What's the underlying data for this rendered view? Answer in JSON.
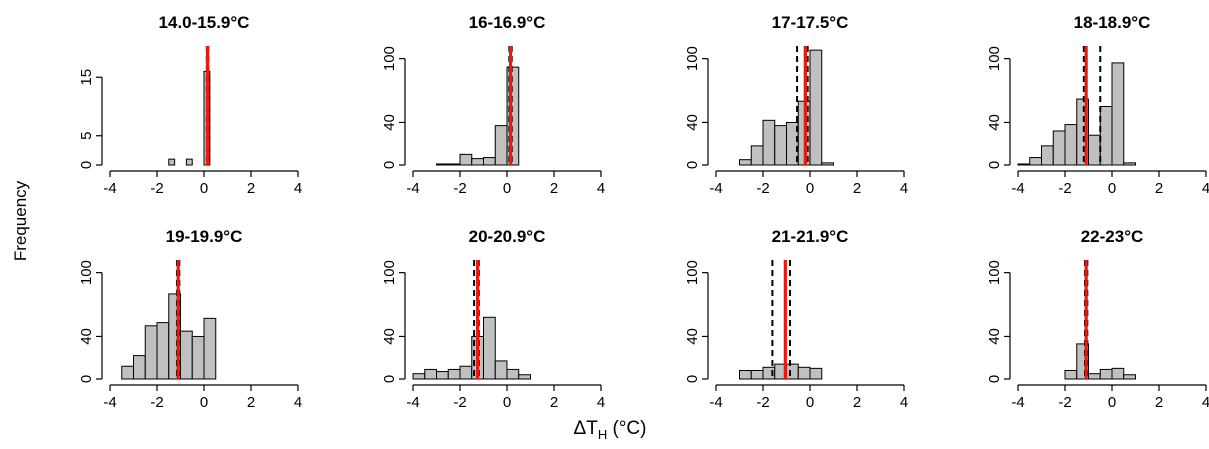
{
  "chart_data": {
    "type": "bar",
    "ylabel": "Frequency",
    "xlabel": "ΔT",
    "xlabel_subscript": "H",
    "xlabel_unit": "(°C)",
    "xticks": [
      -4,
      -2,
      0,
      2,
      4
    ],
    "xlim": [
      -4,
      4
    ],
    "bin_width": 0.5,
    "colors": {
      "bar": "#c0c0c0",
      "mean": "#e8190f",
      "ci": "#000000"
    },
    "panels": [
      {
        "title": "14.0-15.9°C",
        "ylim": [
          0,
          20
        ],
        "yticks": [
          0,
          5,
          15
        ],
        "bins": [
          [
            -1.5,
            -1.25,
            1
          ],
          [
            -0.75,
            -0.5,
            1
          ],
          [
            0,
            0.25,
            16
          ]
        ],
        "mean": 0.15,
        "ci": [
          0.12,
          0.18
        ]
      },
      {
        "title": "16-16.9°C",
        "ylim": [
          0,
          110
        ],
        "yticks": [
          0,
          40,
          100
        ],
        "bins": [
          [
            -3,
            -2.5,
            1
          ],
          [
            -2.5,
            -2,
            1
          ],
          [
            -2,
            -1.5,
            10
          ],
          [
            -1.5,
            -1,
            6
          ],
          [
            -1,
            -0.5,
            7
          ],
          [
            -0.5,
            0,
            37
          ],
          [
            0,
            0.5,
            92
          ]
        ],
        "mean": 0.15,
        "ci": [
          0.1,
          0.2
        ]
      },
      {
        "title": "17-17.5°C",
        "ylim": [
          0,
          110
        ],
        "yticks": [
          0,
          40,
          100
        ],
        "bins": [
          [
            -3,
            -2.5,
            5
          ],
          [
            -2.5,
            -2,
            18
          ],
          [
            -2,
            -1.5,
            42
          ],
          [
            -1.5,
            -1,
            37
          ],
          [
            -1,
            -0.5,
            40
          ],
          [
            -0.5,
            0,
            60
          ],
          [
            0,
            0.5,
            108
          ],
          [
            0.5,
            1,
            2
          ]
        ],
        "mean": -0.2,
        "ci": [
          -0.55,
          -0.1
        ]
      },
      {
        "title": "18-18.9°C",
        "ylim": [
          0,
          110
        ],
        "yticks": [
          0,
          40,
          100
        ],
        "bins": [
          [
            -4,
            -3.5,
            1
          ],
          [
            -3.5,
            -3,
            7
          ],
          [
            -3,
            -2.5,
            18
          ],
          [
            -2.5,
            -2,
            32
          ],
          [
            -2,
            -1.5,
            38
          ],
          [
            -1.5,
            -1,
            62
          ],
          [
            -1,
            -0.5,
            28
          ],
          [
            -0.5,
            0,
            55
          ],
          [
            0,
            0.5,
            96
          ],
          [
            0.5,
            1,
            2
          ]
        ],
        "mean": -1.1,
        "ci": [
          -1.2,
          -0.5
        ]
      },
      {
        "title": "19-19.9°C",
        "ylim": [
          0,
          110
        ],
        "yticks": [
          0,
          40,
          100
        ],
        "bins": [
          [
            -3.5,
            -3,
            12
          ],
          [
            -3,
            -2.5,
            22
          ],
          [
            -2.5,
            -2,
            50
          ],
          [
            -2,
            -1.5,
            53
          ],
          [
            -1.5,
            -1,
            80
          ],
          [
            -1,
            -0.5,
            45
          ],
          [
            -0.5,
            0,
            40
          ],
          [
            0,
            0.5,
            57
          ]
        ],
        "mean": -1.1,
        "ci": [
          -1.15,
          -1.05
        ]
      },
      {
        "title": "20-20.9°C",
        "ylim": [
          0,
          110
        ],
        "yticks": [
          0,
          40,
          100
        ],
        "bins": [
          [
            -4,
            -3.5,
            5
          ],
          [
            -3.5,
            -3,
            9
          ],
          [
            -3,
            -2.5,
            7
          ],
          [
            -2.5,
            -2,
            9
          ],
          [
            -2,
            -1.5,
            12
          ],
          [
            -1.5,
            -1,
            40
          ],
          [
            -1,
            -0.5,
            58
          ],
          [
            -0.5,
            0,
            17
          ],
          [
            0,
            0.5,
            9
          ],
          [
            0.5,
            1,
            4
          ]
        ],
        "mean": -1.25,
        "ci": [
          -1.4,
          -1.2
        ]
      },
      {
        "title": "21-21.9°C",
        "ylim": [
          0,
          110
        ],
        "yticks": [
          0,
          40,
          100
        ],
        "bins": [
          [
            -3,
            -2.5,
            8
          ],
          [
            -2.5,
            -2,
            8
          ],
          [
            -2,
            -1.5,
            11
          ],
          [
            -1.5,
            -1,
            14
          ],
          [
            -1,
            -0.5,
            14
          ],
          [
            -0.5,
            0,
            11
          ],
          [
            0,
            0.5,
            10
          ]
        ],
        "mean": -1.05,
        "ci": [
          -1.6,
          -0.85
        ]
      },
      {
        "title": "22-23°C",
        "ylim": [
          0,
          110
        ],
        "yticks": [
          0,
          40,
          100
        ],
        "bins": [
          [
            -2,
            -1.5,
            8
          ],
          [
            -1.5,
            -1,
            33
          ],
          [
            -1,
            -0.5,
            5
          ],
          [
            -0.5,
            0,
            9
          ],
          [
            0,
            0.5,
            10
          ],
          [
            0.5,
            1,
            4
          ]
        ],
        "mean": -1.1,
        "ci": [
          -1.15,
          -1.05
        ]
      }
    ]
  }
}
